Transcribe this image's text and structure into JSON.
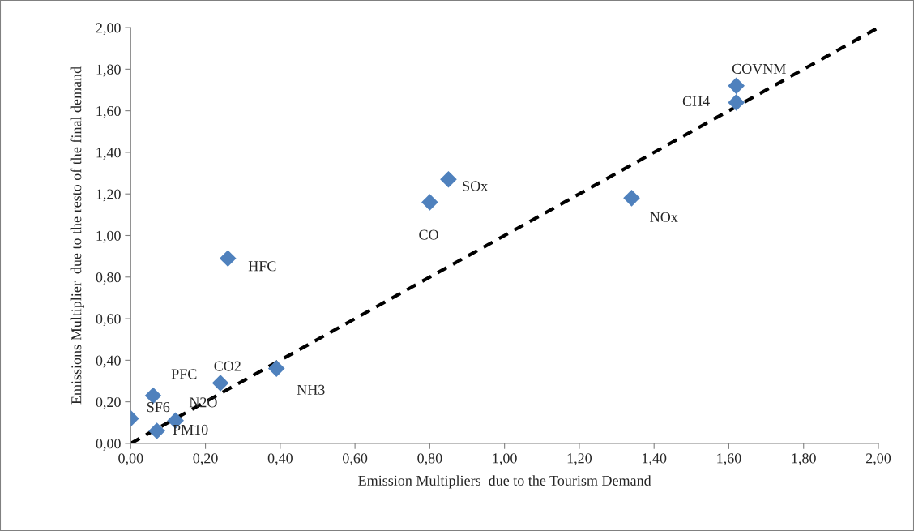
{
  "chart_data": {
    "type": "scatter",
    "xlabel": "Emission Multipliers  due to the Tourism Demand",
    "ylabel": "Emissions Multiplier  due to the resto of the final demand",
    "series": [
      {
        "color": "#4f81bd",
        "marker": "diamond",
        "x": [
          0.0,
          0.06,
          0.07,
          0.12,
          0.24,
          0.26,
          0.39,
          0.8,
          0.85,
          1.34,
          1.62,
          1.62
        ],
        "values": [
          0.12,
          0.23,
          0.06,
          0.11,
          0.29,
          0.89,
          0.36,
          1.16,
          1.27,
          1.18,
          1.64,
          1.72
        ]
      },
      {
        "type": "line",
        "color": "#000000",
        "line_style": "dashed",
        "marker": "none",
        "x": [
          0,
          2
        ],
        "values": [
          0,
          2
        ]
      }
    ],
    "annotations": [
      {
        "text": "SF6",
        "x": 0.0,
        "y": 0.12
      },
      {
        "text": "PFC",
        "x": 0.06,
        "y": 0.23
      },
      {
        "text": "PM10",
        "x": 0.07,
        "y": 0.06
      },
      {
        "text": "N2O",
        "x": 0.12,
        "y": 0.11
      },
      {
        "text": "CO2",
        "x": 0.24,
        "y": 0.29
      },
      {
        "text": "HFC",
        "x": 0.26,
        "y": 0.89
      },
      {
        "text": "NH3",
        "x": 0.39,
        "y": 0.36
      },
      {
        "text": "CO",
        "x": 0.8,
        "y": 1.16
      },
      {
        "text": "SOx",
        "x": 0.85,
        "y": 1.27
      },
      {
        "text": "NOx",
        "x": 1.34,
        "y": 1.18
      },
      {
        "text": "CH4",
        "x": 1.62,
        "y": 1.64
      },
      {
        "text": "COVNM",
        "x": 1.62,
        "y": 1.72
      }
    ],
    "xlim": [
      0,
      2
    ],
    "ylim": [
      0,
      2
    ],
    "xticks": [
      {
        "value": 0,
        "label": "0,00"
      },
      {
        "value": 0.2,
        "label": "0,20"
      },
      {
        "value": 0.4,
        "label": "0,40"
      },
      {
        "value": 0.6,
        "label": "0,60"
      },
      {
        "value": 0.8,
        "label": "0,80"
      },
      {
        "value": 1.0,
        "label": "1,00"
      },
      {
        "value": 1.2,
        "label": "1,20"
      },
      {
        "value": 1.4,
        "label": "1,40"
      },
      {
        "value": 1.6,
        "label": "1,60"
      },
      {
        "value": 1.8,
        "label": "1,80"
      },
      {
        "value": 2.0,
        "label": "2,00"
      }
    ],
    "yticks": [
      {
        "value": 0,
        "label": "0,00"
      },
      {
        "value": 0.2,
        "label": "0,20"
      },
      {
        "value": 0.4,
        "label": "0,40"
      },
      {
        "value": 0.6,
        "label": "0,60"
      },
      {
        "value": 0.8,
        "label": "0,80"
      },
      {
        "value": 1.0,
        "label": "1,00"
      },
      {
        "value": 1.2,
        "label": "1,20"
      },
      {
        "value": 1.4,
        "label": "1,40"
      },
      {
        "value": 1.6,
        "label": "1,60"
      },
      {
        "value": 1.8,
        "label": "1,80"
      },
      {
        "value": 2.0,
        "label": "2,00"
      }
    ],
    "grid": false,
    "legend": false
  }
}
